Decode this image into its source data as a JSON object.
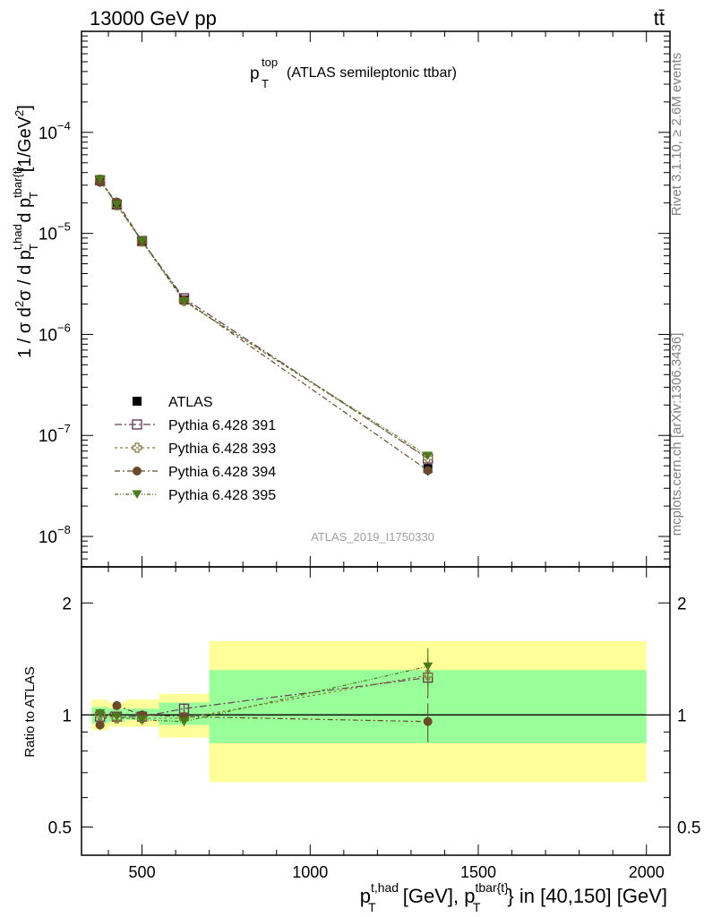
{
  "header": {
    "left": "13000 GeV pp",
    "right": "tt̄"
  },
  "top_panel": {
    "title_main": "p",
    "title_sup": "top",
    "title_sub": "T",
    "title_rest": "(ATLAS semileptonic ttbar)",
    "ylabel": "1 / σ d²σ / d p_T^{t,had} d p_T^{tbar{t}}[1/GeV²]",
    "ylabel_parts": {
      "a": "1 / σ d",
      "b": "2",
      "c": "σ / d p",
      "d": "t,had",
      "e": "T",
      "f": " d p",
      "g": "tbar{t}",
      "h": "T",
      "i": "[1/GeV",
      "j": "2",
      "k": "]"
    },
    "analysis_id": "ATLAS_2019_I1750330",
    "ytick_labels": [
      {
        "base": "10",
        "exp": "−4"
      },
      {
        "base": "10",
        "exp": "−5"
      },
      {
        "base": "10",
        "exp": "−6"
      },
      {
        "base": "10",
        "exp": "−7"
      },
      {
        "base": "10",
        "exp": "−8"
      }
    ]
  },
  "side_labels": {
    "rivet": "Rivet 3.1.10, ≥ 2.6M events",
    "mcplots": "mcplots.cern.ch [arXiv:1306.3436]"
  },
  "legend": [
    {
      "label": "ATLAS",
      "marker": "square-filled",
      "color": "#000000"
    },
    {
      "label": "Pythia 6.428 391",
      "marker": "square-open",
      "color": "#6b3a5a"
    },
    {
      "label": "Pythia 6.428 393",
      "marker": "cross-open",
      "color": "#8a7a3a"
    },
    {
      "label": "Pythia 6.428 394",
      "marker": "circle-filled",
      "color": "#6b4a2a"
    },
    {
      "label": "Pythia 6.428 395",
      "marker": "triangle-down",
      "color": "#4a7a1a"
    }
  ],
  "bottom_panel": {
    "ylabel": "Ratio to ATLAS",
    "ytick_labels": [
      "2",
      "1",
      "0.5"
    ]
  },
  "xaxis": {
    "tick_labels": [
      "500",
      "1000",
      "1500",
      "2000"
    ],
    "label_parts": {
      "a": "p",
      "b": "t,had",
      "c": "T",
      "d": " [GeV], p",
      "e": "tbar{t}",
      "f": "T",
      "g": "} in [40,150] [GeV]"
    }
  },
  "chart_data": {
    "type": "scatter",
    "xlim": [
      320,
      2070
    ],
    "top": {
      "yscale": "log",
      "ylim": [
        5e-09,
        0.001
      ],
      "x": [
        375,
        425,
        500,
        625,
        1350
      ],
      "series": [
        {
          "name": "ATLAS",
          "values": [
            3.4e-05,
            1.95e-05,
            8.5e-06,
            2.2e-06,
            4.7e-08
          ],
          "errors": [
            1.5e-06,
            8e-07,
            3e-07,
            1e-07,
            7e-09
          ]
        },
        {
          "name": "Pythia 6.428 391",
          "values": [
            3.35e-05,
            1.93e-05,
            8.4e-06,
            2.28e-06,
            5.9e-08
          ]
        },
        {
          "name": "Pythia 6.428 393",
          "values": [
            3.4e-05,
            1.9e-05,
            8.3e-06,
            2.15e-06,
            6e-08
          ]
        },
        {
          "name": "Pythia 6.428 394",
          "values": [
            3.2e-05,
            2.05e-05,
            8.4e-06,
            2.2e-06,
            4.5e-08
          ]
        },
        {
          "name": "Pythia 6.428 395",
          "values": [
            3.45e-05,
            1.93e-05,
            8.4e-06,
            2.12e-06,
            6.3e-08
          ]
        }
      ]
    },
    "bottom": {
      "yscale": "log",
      "ylim": [
        0.42,
        2.5
      ],
      "bins": [
        {
          "x0": 350,
          "x1": 400,
          "inner": [
            0.95,
            1.05
          ],
          "outer": [
            0.91,
            1.1
          ]
        },
        {
          "x0": 400,
          "x1": 450,
          "inner": [
            0.96,
            1.04
          ],
          "outer": [
            0.93,
            1.08
          ]
        },
        {
          "x0": 450,
          "x1": 550,
          "inner": [
            0.97,
            1.04
          ],
          "outer": [
            0.93,
            1.1
          ]
        },
        {
          "x0": 550,
          "x1": 700,
          "inner": [
            0.94,
            1.08
          ],
          "outer": [
            0.87,
            1.14
          ]
        },
        {
          "x0": 700,
          "x1": 2000,
          "inner": [
            0.84,
            1.32
          ],
          "outer": [
            0.66,
            1.58
          ]
        }
      ],
      "series": [
        {
          "name": "Pythia 6.428 391",
          "values": [
            0.99,
            0.99,
            0.99,
            1.04,
            1.26
          ]
        },
        {
          "name": "Pythia 6.428 393",
          "values": [
            1.0,
            0.98,
            0.98,
            0.98,
            1.28
          ]
        },
        {
          "name": "Pythia 6.428 394",
          "values": [
            0.94,
            1.06,
            1.0,
            0.99,
            0.96
          ]
        },
        {
          "name": "Pythia 6.428 395",
          "values": [
            1.01,
            0.99,
            0.97,
            0.96,
            1.35
          ]
        }
      ]
    }
  }
}
